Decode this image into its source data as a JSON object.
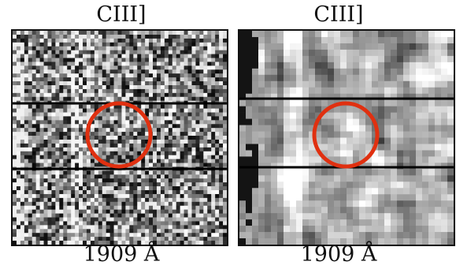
{
  "panels": [
    {
      "title": "CIII]",
      "caption": "1909 Å"
    },
    {
      "title": "CIII]",
      "caption": "1909 Å"
    }
  ],
  "colors": {
    "circle": "#e03010",
    "line": "#000000"
  }
}
